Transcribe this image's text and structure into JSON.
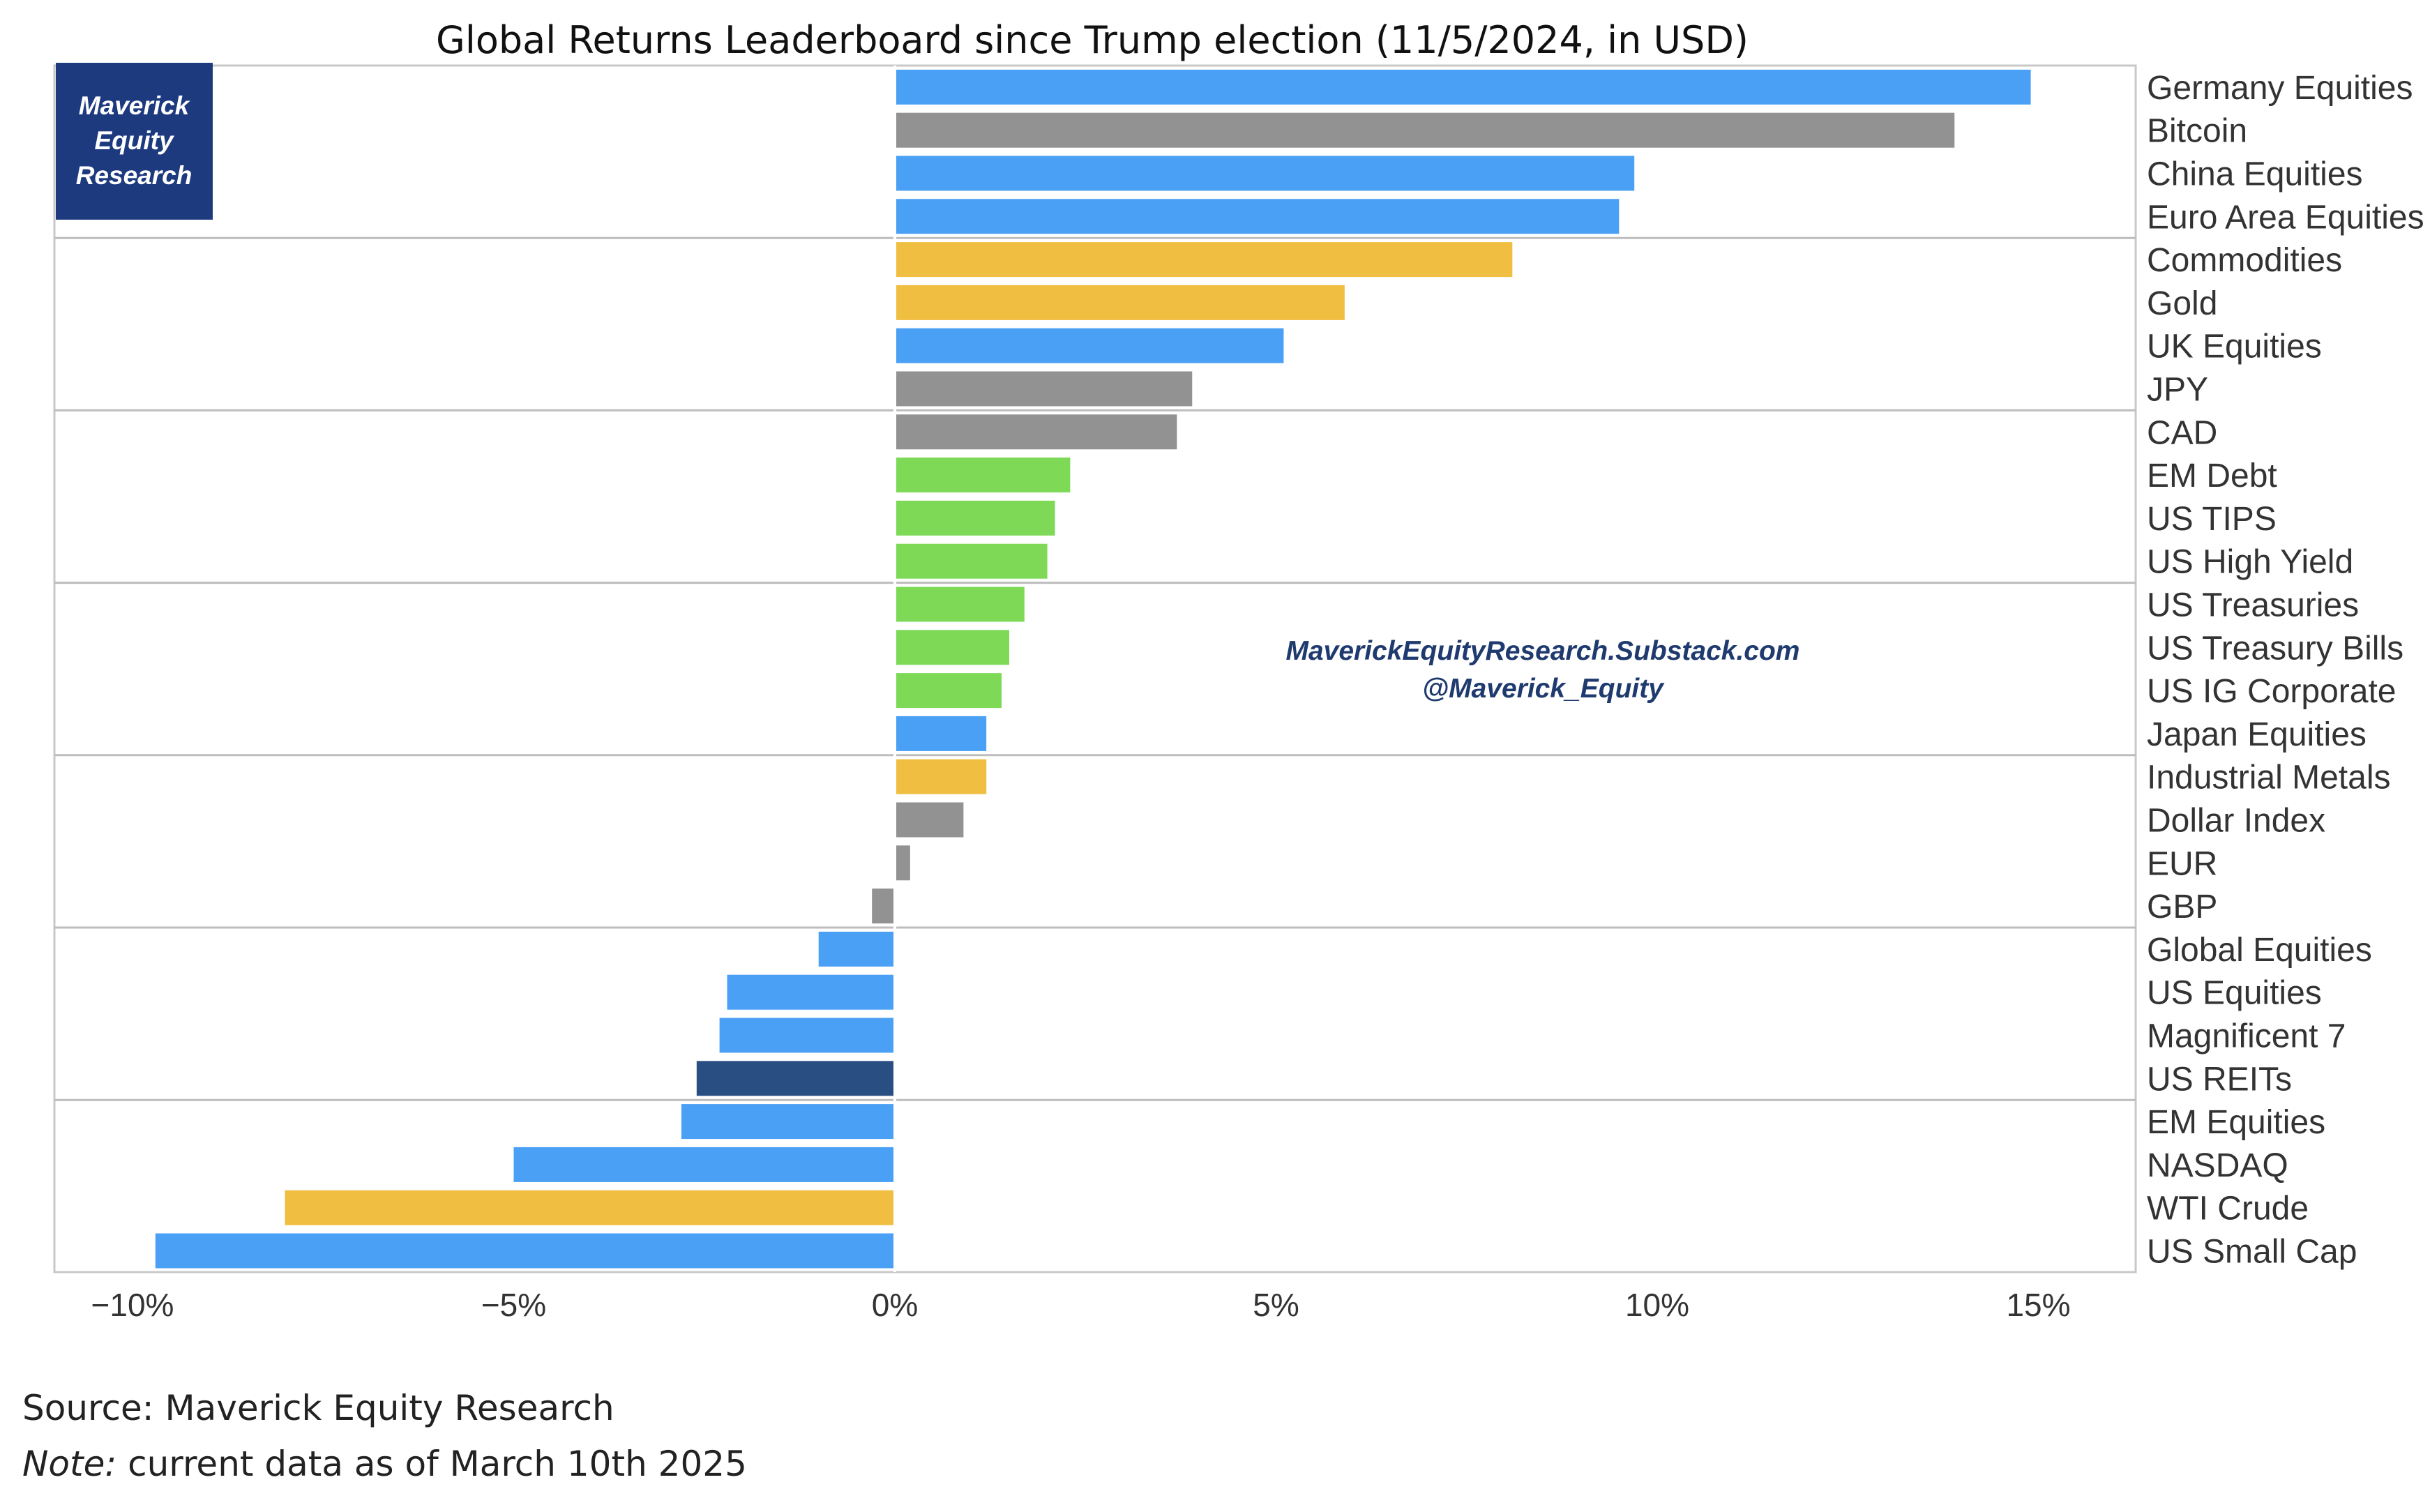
{
  "chart_data": {
    "type": "bar",
    "orientation": "horizontal",
    "title": "Global Returns Leaderboard since Trump election (11/5/2024, in USD)",
    "xlabel": "",
    "ylabel": "",
    "xlim": [
      -11,
      16
    ],
    "x_ticks": [
      -10,
      -5,
      0,
      5,
      10,
      15
    ],
    "x_tick_labels": [
      "−10%",
      "−5%",
      "0%",
      "5%",
      "10%",
      "15%"
    ],
    "grid": false,
    "group_size": 4,
    "categories": [
      "Germany Equities",
      "Bitcoin",
      "China Equities",
      "Euro Area Equities",
      "Commodities",
      "Gold",
      "UK Equities",
      "JPY",
      "CAD",
      "EM Debt",
      "US TIPS",
      "US High Yield",
      "US Treasuries",
      "US Treasury Bills",
      "US IG Corporate",
      "Japan Equities",
      "Industrial Metals",
      "Dollar Index",
      "EUR",
      "GBP",
      "Global Equities",
      "US Equities",
      "Magnificent 7",
      "US REITs",
      "EM Equities",
      "NASDAQ",
      "WTI Crude",
      "US Small Cap"
    ],
    "values": [
      14.9,
      13.9,
      9.7,
      9.5,
      8.1,
      5.9,
      5.1,
      3.9,
      3.7,
      2.3,
      2.1,
      2.0,
      1.7,
      1.5,
      1.4,
      1.2,
      1.2,
      0.9,
      0.2,
      -0.3,
      -1.0,
      -2.2,
      -2.3,
      -2.6,
      -2.8,
      -5.0,
      -8.0,
      -9.7
    ],
    "bar_colors": [
      "#4aa0f5",
      "#929292",
      "#4aa0f5",
      "#4aa0f5",
      "#f0be40",
      "#f0be40",
      "#4aa0f5",
      "#929292",
      "#929292",
      "#7ed957",
      "#7ed957",
      "#7ed957",
      "#7ed957",
      "#7ed957",
      "#7ed957",
      "#4aa0f5",
      "#f0be40",
      "#929292",
      "#929292",
      "#929292",
      "#4aa0f5",
      "#4aa0f5",
      "#4aa0f5",
      "#294f82",
      "#4aa0f5",
      "#4aa0f5",
      "#f0be40",
      "#4aa0f5"
    ]
  },
  "logo": {
    "lines": [
      "Maverick",
      "Equity",
      "Research"
    ],
    "color": "#1d3a7f"
  },
  "watermark": {
    "line1": "MaverickEquityResearch.Substack.com",
    "line2": "@Maverick_Equity"
  },
  "footer": {
    "source": "Source: Maverick Equity Research",
    "note_label": "Note:",
    "note_text": " current data as of March 10th 2025"
  }
}
